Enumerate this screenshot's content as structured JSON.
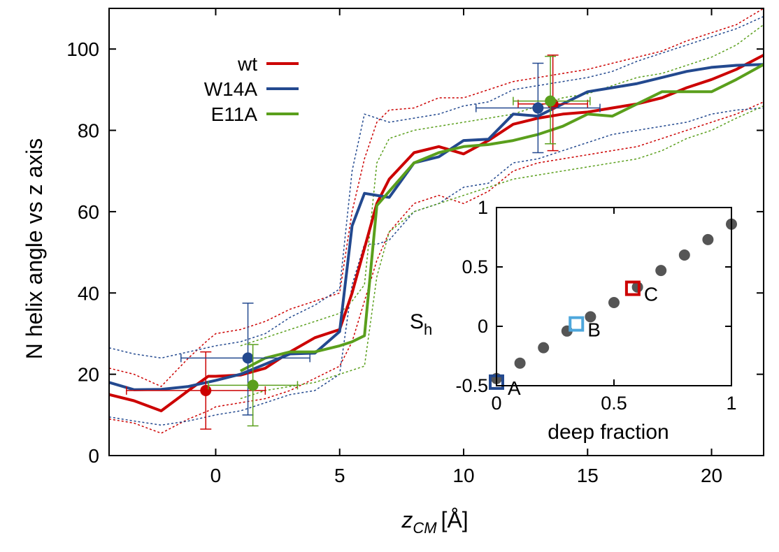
{
  "colors": {
    "wt": "#cc0000",
    "W14A": "#23498f",
    "E11A": "#5a9f1c",
    "inset_dots": "#555555",
    "axes": "#000000",
    "B_marker": "#4ea7dc"
  },
  "chart_data": {
    "type": "line",
    "title": "",
    "xlabel_var": "z",
    "xlabel_sub": "CM",
    "xlabel_unit": "[Å]",
    "ylabel": "N helix angle vs z axis",
    "xlim": [
      -4.3,
      22.1
    ],
    "ylim": [
      0,
      110
    ],
    "xticks": [
      0,
      5,
      10,
      15,
      20
    ],
    "yticks": [
      0,
      20,
      40,
      60,
      80,
      100
    ],
    "legend_position": "top-left",
    "series": [
      {
        "name": "wt",
        "color_key": "wt",
        "x": [
          -4.3,
          -3.3,
          -2.2,
          -1.1,
          -0.3,
          0.0,
          1.0,
          2.0,
          3.0,
          4.0,
          5.0,
          5.5,
          6.0,
          6.5,
          7.0,
          8.0,
          9.0,
          10.0,
          11.0,
          12.0,
          13.0,
          14.0,
          15.0,
          16.0,
          17.0,
          18.0,
          19.0,
          20.0,
          21.0,
          22.1
        ],
        "y": [
          15,
          13.5,
          11,
          16,
          19.5,
          19.5,
          19.8,
          21.5,
          25.5,
          29,
          31,
          40,
          51,
          62,
          68,
          74.5,
          76,
          74.2,
          77.5,
          81.5,
          83,
          84,
          84.5,
          85.5,
          86.5,
          88,
          90.5,
          92.5,
          95,
          98.5
        ],
        "ci_upper": [
          21.5,
          20,
          17,
          24,
          28.5,
          30,
          31,
          33,
          36,
          38,
          40,
          60,
          73,
          82,
          85,
          85.5,
          88,
          88,
          90,
          92,
          93,
          94,
          95,
          96.5,
          98,
          99.5,
          102,
          104,
          106,
          110
        ],
        "ci_lower": [
          9,
          8,
          5.5,
          9,
          11,
          12,
          13,
          14,
          16,
          19,
          22,
          28,
          38,
          48,
          55,
          62,
          64,
          62,
          65,
          70,
          72,
          73,
          74,
          75,
          76,
          78,
          80,
          82,
          84,
          87
        ]
      },
      {
        "name": "W14A",
        "color_key": "W14A",
        "x": [
          -4.3,
          -3.3,
          -2.2,
          -1.1,
          0.0,
          1.0,
          2.0,
          3.0,
          4.0,
          5.0,
          5.5,
          6.0,
          6.5,
          7.0,
          8.0,
          9.0,
          10.0,
          11.0,
          12.0,
          13.0,
          14.0,
          15.0,
          16.0,
          17.0,
          18.0,
          19.0,
          20.0,
          21.0,
          22.1
        ],
        "y": [
          18,
          16.2,
          16.3,
          17,
          18.5,
          20,
          22.5,
          25,
          25.2,
          30.5,
          56.5,
          64.5,
          64,
          63.5,
          72,
          73.5,
          77.5,
          77.8,
          84,
          83.5,
          86.5,
          89.5,
          90.5,
          91.5,
          93,
          94.5,
          95.5,
          96,
          96.2
        ],
        "ci_upper": [
          26.5,
          25,
          24,
          25.5,
          27,
          28,
          30,
          34,
          37,
          41,
          70,
          84,
          83,
          82,
          83,
          84,
          86,
          87,
          90,
          91,
          92,
          93,
          94.5,
          97,
          99,
          101,
          103,
          105,
          108
        ],
        "ci_lower": [
          9.5,
          8.5,
          7.5,
          8.5,
          10,
          11,
          13,
          15,
          16,
          20,
          42,
          52,
          52,
          53,
          60,
          62,
          66,
          67,
          72,
          73,
          75,
          77,
          79,
          80,
          81,
          82,
          84,
          85,
          85.5
        ]
      },
      {
        "name": "E11A",
        "color_key": "E11A",
        "x": [
          1.0,
          2.0,
          3.0,
          4.0,
          5.0,
          5.5,
          6.0,
          6.5,
          7.0,
          8.0,
          9.0,
          10.0,
          11.0,
          12.0,
          13.0,
          14.0,
          15.0,
          16.0,
          17.0,
          18.0,
          19.0,
          20.0,
          21.0,
          22.1
        ],
        "y": [
          20.8,
          24,
          25.5,
          25.5,
          27,
          28,
          29.5,
          61.5,
          65,
          72,
          74.5,
          76,
          76.5,
          77.5,
          79,
          81,
          84,
          83.5,
          86.5,
          89.5,
          89.5,
          89.5,
          92.5,
          96.2
        ],
        "ci_upper": [
          27,
          29,
          31,
          33,
          35,
          38,
          42,
          72,
          78,
          80,
          81,
          82,
          83,
          84,
          86,
          88,
          89,
          91,
          93,
          94,
          96,
          98,
          101,
          106
        ],
        "ci_lower": [
          14,
          16,
          17,
          18,
          20,
          21,
          22,
          44,
          55,
          60,
          62,
          64,
          66,
          68,
          69,
          70,
          71,
          72,
          73,
          75,
          78,
          80,
          83,
          86
        ]
      }
    ],
    "error_points": [
      {
        "series": "wt",
        "x": -0.4,
        "y": 16,
        "xerr_low": 3.2,
        "xerr_high": 2.4,
        "yerr_low": 9.5,
        "yerr_high": 9.5
      },
      {
        "series": "W14A",
        "x": 1.3,
        "y": 24,
        "xerr_low": 2.7,
        "xerr_high": 2.5,
        "yerr_low": 14,
        "yerr_high": 13.5
      },
      {
        "series": "E11A",
        "x": 1.5,
        "y": 17.3,
        "xerr_low": 1.8,
        "xerr_high": 1.8,
        "yerr_low": 10,
        "yerr_high": 10
      },
      {
        "series": "wt",
        "x": 13.6,
        "y": 86.5,
        "xerr_low": 1.4,
        "xerr_high": 1.4,
        "yerr_low": 11.5,
        "yerr_high": 12
      },
      {
        "series": "W14A",
        "x": 13.0,
        "y": 85.5,
        "xerr_low": 2.5,
        "xerr_high": 2.5,
        "yerr_low": 11,
        "yerr_high": 11
      },
      {
        "series": "E11A",
        "x": 13.5,
        "y": 87.2,
        "xerr_low": 1.5,
        "xerr_high": 1.6,
        "yerr_low": 10.5,
        "yerr_high": 11
      }
    ],
    "inset": {
      "type": "scatter",
      "xlabel": "deep fraction",
      "ylabel_main": "S",
      "ylabel_sub": "h",
      "xlim": [
        0,
        1
      ],
      "ylim": [
        -0.5,
        1
      ],
      "xticks": [
        "0",
        "0.5",
        "1"
      ],
      "yticks": [
        "-0.5",
        "0",
        "0.5",
        "1"
      ],
      "ytick_values": [
        -0.5,
        0,
        0.5,
        1
      ],
      "xtick_values": [
        0,
        0.5,
        1
      ],
      "points_x": [
        0,
        0.1,
        0.2,
        0.3,
        0.4,
        0.5,
        0.6,
        0.7,
        0.8,
        0.9,
        1.0
      ],
      "points_y": [
        -0.44,
        -0.31,
        -0.18,
        -0.04,
        0.08,
        0.2,
        0.33,
        0.47,
        0.6,
        0.73,
        0.86
      ],
      "labeled_points": [
        {
          "label": "A",
          "x": 0.0,
          "y": -0.47,
          "color_key": "W14A"
        },
        {
          "label": "B",
          "x": 0.34,
          "y": 0.02,
          "color_key": "B_marker"
        },
        {
          "label": "C",
          "x": 0.58,
          "y": 0.32,
          "color_key": "wt"
        }
      ]
    }
  }
}
